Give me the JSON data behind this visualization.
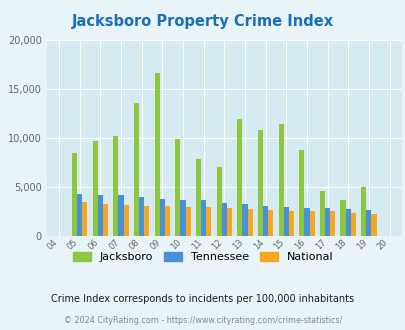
{
  "title": "Jacksboro Property Crime Index",
  "years": [
    "04",
    "05",
    "06",
    "07",
    "08",
    "09",
    "10",
    "11",
    "12",
    "13",
    "14",
    "15",
    "16",
    "17",
    "18",
    "19",
    "20"
  ],
  "jacksboro": [
    0,
    8500,
    9700,
    10200,
    13500,
    16600,
    9900,
    7800,
    7000,
    11900,
    10800,
    11400,
    8750,
    4550,
    3650,
    4950,
    0
  ],
  "tennessee": [
    0,
    4250,
    4150,
    4150,
    4000,
    3750,
    3650,
    3650,
    3350,
    3250,
    3050,
    2950,
    2800,
    2850,
    2750,
    2600,
    0
  ],
  "national": [
    0,
    3500,
    3300,
    3150,
    3100,
    3050,
    2950,
    2900,
    2800,
    2750,
    2600,
    2550,
    2500,
    2500,
    2350,
    2200,
    0
  ],
  "jacksboro_color": "#8dc63f",
  "tennessee_color": "#4a90d9",
  "national_color": "#f5a623",
  "bg_color": "#e8f4f8",
  "plot_bg": "#d6eaf2",
  "ylim": [
    0,
    20000
  ],
  "yticks": [
    0,
    5000,
    10000,
    15000,
    20000
  ],
  "title_color": "#1a6fba",
  "subtitle": "Crime Index corresponds to incidents per 100,000 inhabitants",
  "footer": "© 2024 CityRating.com - https://www.cityrating.com/crime-statistics/",
  "bar_width": 0.25
}
